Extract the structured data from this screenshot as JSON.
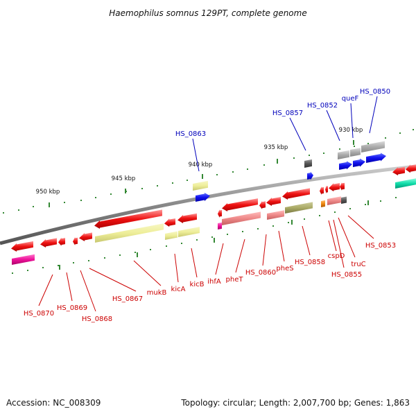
{
  "title": "Haemophilus somnus 129PT, complete genome",
  "footer": {
    "accession": "Accession: NC_008309",
    "summary": "Topology: circular; Length: 2,007,700 bp; Genes: 1,863"
  },
  "colors": {
    "backbone": "#888888",
    "forward_strand_label": "#0000bb",
    "reverse_strand_label": "#cc0000",
    "tick_major": "#338833",
    "tick_minor": "#338833",
    "cds_reverse": "#ee1111",
    "cds_forward": "#1111ee",
    "cog_yellow": "#eeee99",
    "cog_salmon": "#ee8888",
    "cog_olive": "#aaaa66",
    "cog_grey": "#aaaaaa",
    "cog_magenta": "#ee1199",
    "cog_green": "#11ddaa",
    "cog_orange": "#ee8811",
    "cog_dark": "#555555"
  },
  "scale": {
    "unit": "kbp",
    "major_ticks": [
      {
        "label": "950 kbp"
      },
      {
        "label": "945 kbp"
      },
      {
        "label": "940 kbp"
      },
      {
        "label": "935 kbp"
      },
      {
        "label": "930 kbp"
      }
    ]
  },
  "labels": {
    "forward": [
      "HS_0863",
      "HS_0857",
      "HS_0852",
      "queF",
      "HS_0850"
    ],
    "reverse": [
      "HS_0870",
      "HS_0869",
      "HS_0868",
      "HS_0867",
      "mukB",
      "kicA",
      "kicB",
      "ihfA",
      "pheT",
      "HS_0860",
      "pheS",
      "HS_0858",
      "cspD",
      "HS_0855",
      "truC",
      "HS_0853"
    ]
  }
}
